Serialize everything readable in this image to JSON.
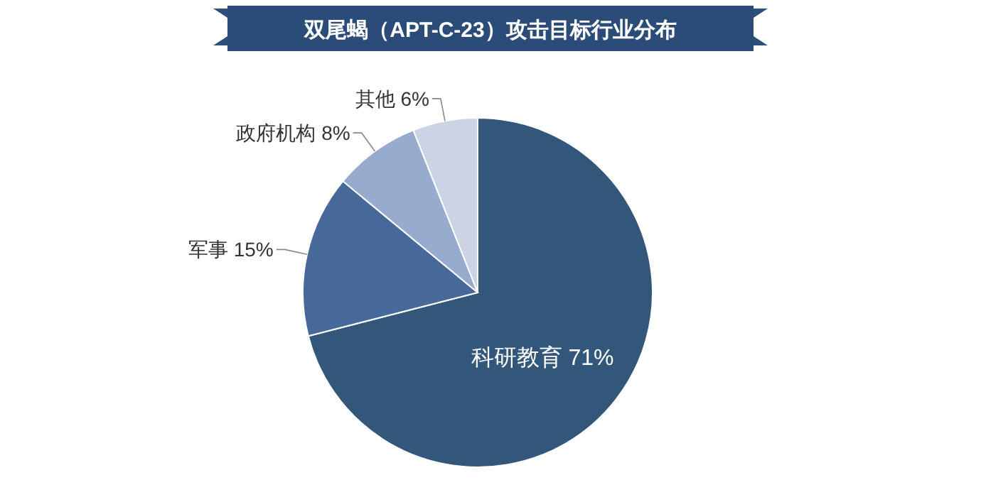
{
  "chart_data": {
    "type": "pie",
    "title": "双尾蝎（APT-C-23）攻击目标行业分布",
    "categories": [
      "科研教育",
      "军事",
      "政府机构",
      "其他"
    ],
    "values": [
      71,
      15,
      8,
      6
    ],
    "colors": [
      "#33567b",
      "#46699a",
      "#97abcf",
      "#cbd3e4"
    ],
    "value_labels": [
      "71%",
      "15%",
      "8%",
      "6%"
    ],
    "legend": false
  }
}
